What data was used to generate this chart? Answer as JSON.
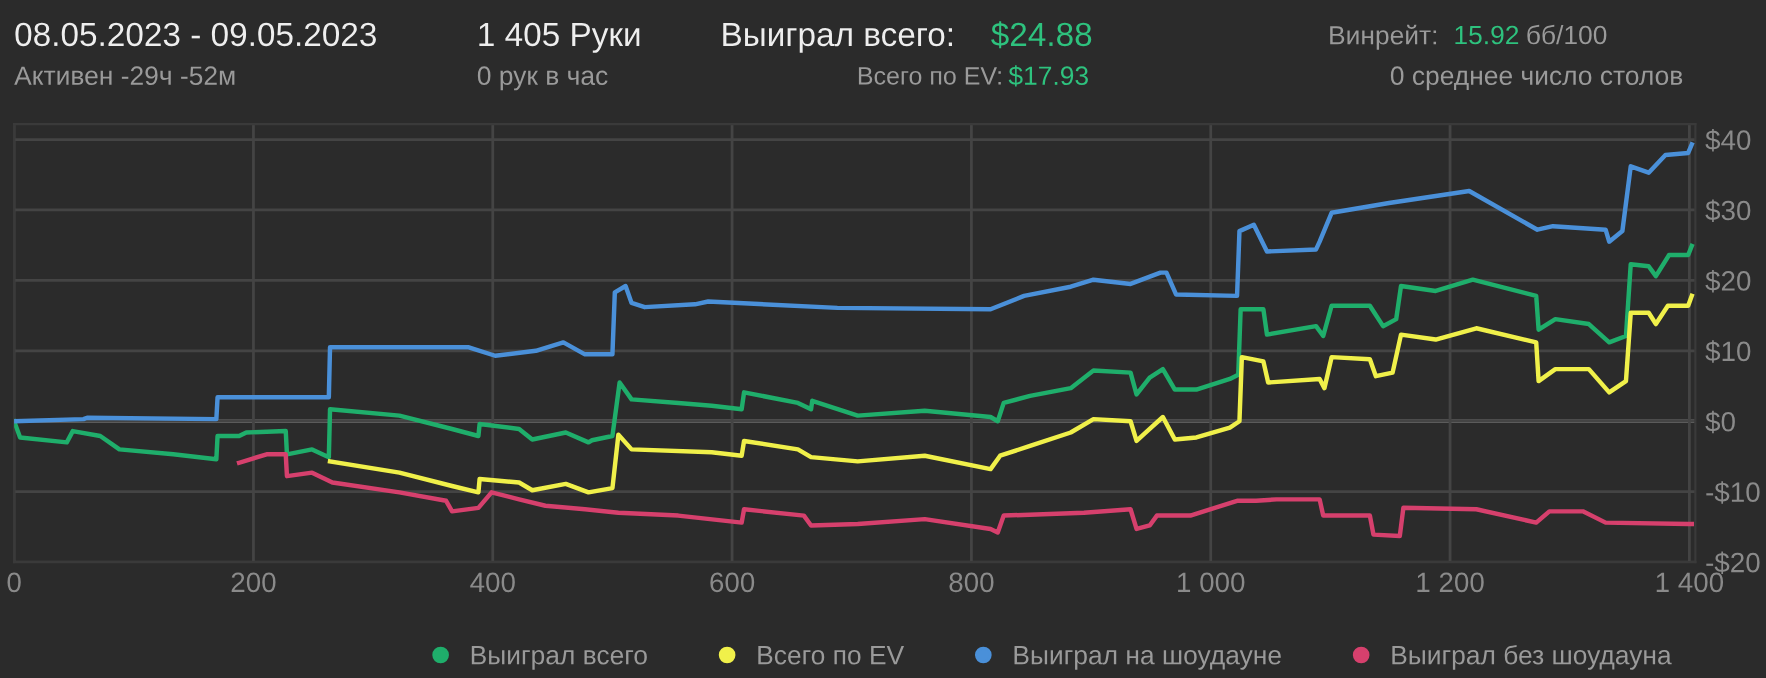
{
  "chart_data": {
    "type": "line",
    "annotations": [
      "08.05.2023 - 09.05.2023",
      "Активен -29ч -52м",
      "1 405 Руки",
      "0 рук в час",
      "Выиграл всего:",
      "$24.88",
      "Всего по EV:",
      "$17.93",
      "Винрейт:",
      "15.92",
      "бб/100",
      "0 среднее число столов"
    ],
    "xlim": [
      0,
      1405
    ],
    "xticks": [
      0,
      200,
      400,
      600,
      800,
      {
        "value": 1000,
        "label": "1 000"
      },
      {
        "value": 1200,
        "label": "1 200"
      },
      {
        "value": 1400,
        "label": "1 400"
      }
    ],
    "ylim": [
      -20,
      42.2
    ],
    "yticks": [
      {
        "value": -20,
        "label": "-$20"
      },
      {
        "value": -10,
        "label": "-$10"
      },
      {
        "value": 0,
        "label": "$0"
      },
      {
        "value": 10,
        "label": "$10"
      },
      {
        "value": 20,
        "label": "$20"
      },
      {
        "value": 30,
        "label": "$30"
      },
      {
        "value": 40,
        "label": "$40"
      }
    ],
    "grid": true,
    "legend": "bottom right",
    "marker": "none",
    "line_style": "solid",
    "ref_lines": [
      {
        "axis": "y",
        "value": 0,
        "label": null,
        "color": "#bbbbbb"
      }
    ],
    "series": [
      {
        "name": "Выиграл всего",
        "color": "#1fae6b",
        "x": [
          0,
          5,
          44,
          49,
          72,
          88,
          133,
          169,
          170,
          188,
          194,
          227,
          228,
          249,
          263,
          264,
          322,
          366,
          388,
          389,
          422,
          433,
          461,
          480,
          483,
          500,
          506,
          516,
          555,
          583,
          608,
          610,
          655,
          666,
          667,
          705,
          761,
          816,
          822,
          827,
          849,
          883,
          902,
          933,
          938,
          949,
          960,
          970,
          988,
          1016,
          1023,
          1025,
          1044,
          1047,
          1088,
          1094,
          1101,
          1133,
          1144,
          1155,
          1159,
          1188,
          1219,
          1272,
          1274,
          1288,
          1316,
          1333,
          1347,
          1351,
          1366,
          1372,
          1383,
          1399,
          1402
        ],
        "values": [
          0,
          -2.3,
          -3,
          -1.4,
          -2.1,
          -4,
          -4.7,
          -5.4,
          -2.1,
          -2.1,
          -1.6,
          -1.4,
          -4.7,
          -4,
          -5.1,
          1.7,
          0.8,
          -1.1,
          -2.1,
          -0.4,
          -1.1,
          -2.6,
          -1.6,
          -3,
          -2.7,
          -2.1,
          5.5,
          3.1,
          2.6,
          2.2,
          1.7,
          4.1,
          2.6,
          1.7,
          2.9,
          0.8,
          1.5,
          0.6,
          0,
          2.6,
          3.6,
          4.7,
          7.2,
          6.9,
          3.8,
          6.2,
          7.4,
          4.5,
          4.5,
          6,
          6.6,
          15.9,
          15.9,
          12.3,
          13.5,
          12.1,
          16.4,
          16.4,
          13.5,
          14.5,
          19.2,
          18.5,
          20.1,
          17.8,
          13,
          14.5,
          13.8,
          11.2,
          12.1,
          22.3,
          22,
          20.6,
          23.6,
          23.6,
          24.9
        ]
      },
      {
        "name": "Всего по EV",
        "color": "#f0f04a",
        "x": [
          264,
          322,
          366,
          388,
          389,
          422,
          433,
          461,
          480,
          500,
          505,
          516,
          583,
          608,
          610,
          655,
          666,
          705,
          761,
          816,
          824,
          849,
          883,
          902,
          933,
          938,
          949,
          960,
          970,
          988,
          1016,
          1024,
          1026,
          1044,
          1048,
          1091,
          1095,
          1101,
          1133,
          1138,
          1152,
          1159,
          1188,
          1222,
          1272,
          1274,
          1288,
          1316,
          1333,
          1347,
          1351,
          1366,
          1372,
          1382,
          1399,
          1402
        ],
        "values": [
          -5.7,
          -7.3,
          -9.2,
          -10.1,
          -8.2,
          -8.7,
          -9.8,
          -8.9,
          -10.1,
          -9.5,
          -1.9,
          -4,
          -4.4,
          -4.9,
          -2.8,
          -4,
          -5.1,
          -5.7,
          -4.9,
          -6.8,
          -4.9,
          -3.5,
          -1.6,
          0.3,
          0,
          -2.8,
          -1.1,
          0.6,
          -2.6,
          -2.3,
          -0.9,
          0,
          9.1,
          8.5,
          5.5,
          6,
          4.7,
          9.1,
          8.8,
          6.4,
          6.9,
          12.3,
          11.6,
          13.2,
          11.2,
          5.7,
          7.4,
          7.4,
          4.1,
          5.7,
          15.4,
          15.4,
          13.8,
          16.4,
          16.4,
          17.8
        ]
      },
      {
        "name": "Выиграл на шоудауне",
        "color": "#4a90d9",
        "x": [
          0,
          58,
          61,
          169,
          170,
          263,
          264,
          380,
          402,
          436,
          459,
          477,
          500,
          502,
          511,
          516,
          527,
          569,
          580,
          688,
          816,
          844,
          883,
          902,
          933,
          958,
          963,
          971,
          1022,
          1024,
          1036,
          1047,
          1088,
          1091,
          1101,
          1149,
          1216,
          1273,
          1286,
          1330,
          1333,
          1344,
          1351,
          1366,
          1380,
          1399,
          1402
        ],
        "values": [
          0,
          0.3,
          0.5,
          0.3,
          3.4,
          3.4,
          10.5,
          10.5,
          9.3,
          10,
          11.2,
          9.5,
          9.5,
          18.3,
          19.2,
          16.8,
          16.2,
          16.6,
          17,
          16.1,
          15.9,
          17.8,
          19.1,
          20.1,
          19.5,
          21.1,
          21.1,
          18,
          17.8,
          27,
          27.9,
          24.1,
          24.4,
          25.5,
          29.6,
          31,
          32.7,
          27.2,
          27.7,
          27.2,
          25.5,
          27,
          36.2,
          35.3,
          37.8,
          38.1,
          39.3
        ]
      },
      {
        "name": "Выиграл без шоудауна",
        "color": "#d6406d",
        "x": [
          188,
          211,
          227,
          228,
          249,
          266,
          322,
          361,
          366,
          388,
          399,
          422,
          444,
          477,
          505,
          555,
          608,
          610,
          660,
          666,
          705,
          761,
          816,
          822,
          827,
          894,
          933,
          938,
          949,
          955,
          983,
          1022,
          1038,
          1055,
          1091,
          1094,
          1133,
          1136,
          1158,
          1161,
          1222,
          1272,
          1283,
          1311,
          1330,
          1399,
          1402
        ],
        "values": [
          -5.9,
          -4.7,
          -4.7,
          -7.8,
          -7.3,
          -8.7,
          -10.1,
          -11.3,
          -12.8,
          -12.3,
          -10.1,
          -11.1,
          -12,
          -12.5,
          -13,
          -13.4,
          -14.4,
          -12.5,
          -13.4,
          -14.8,
          -14.6,
          -13.9,
          -15.3,
          -15.8,
          -13.4,
          -13,
          -12.5,
          -15.3,
          -14.8,
          -13.4,
          -13.4,
          -11.3,
          -11.3,
          -11.1,
          -11.1,
          -13.4,
          -13.4,
          -16.1,
          -16.3,
          -12.3,
          -12.5,
          -14.4,
          -12.8,
          -12.8,
          -14.4,
          -14.6,
          -14.6
        ]
      }
    ]
  }
}
